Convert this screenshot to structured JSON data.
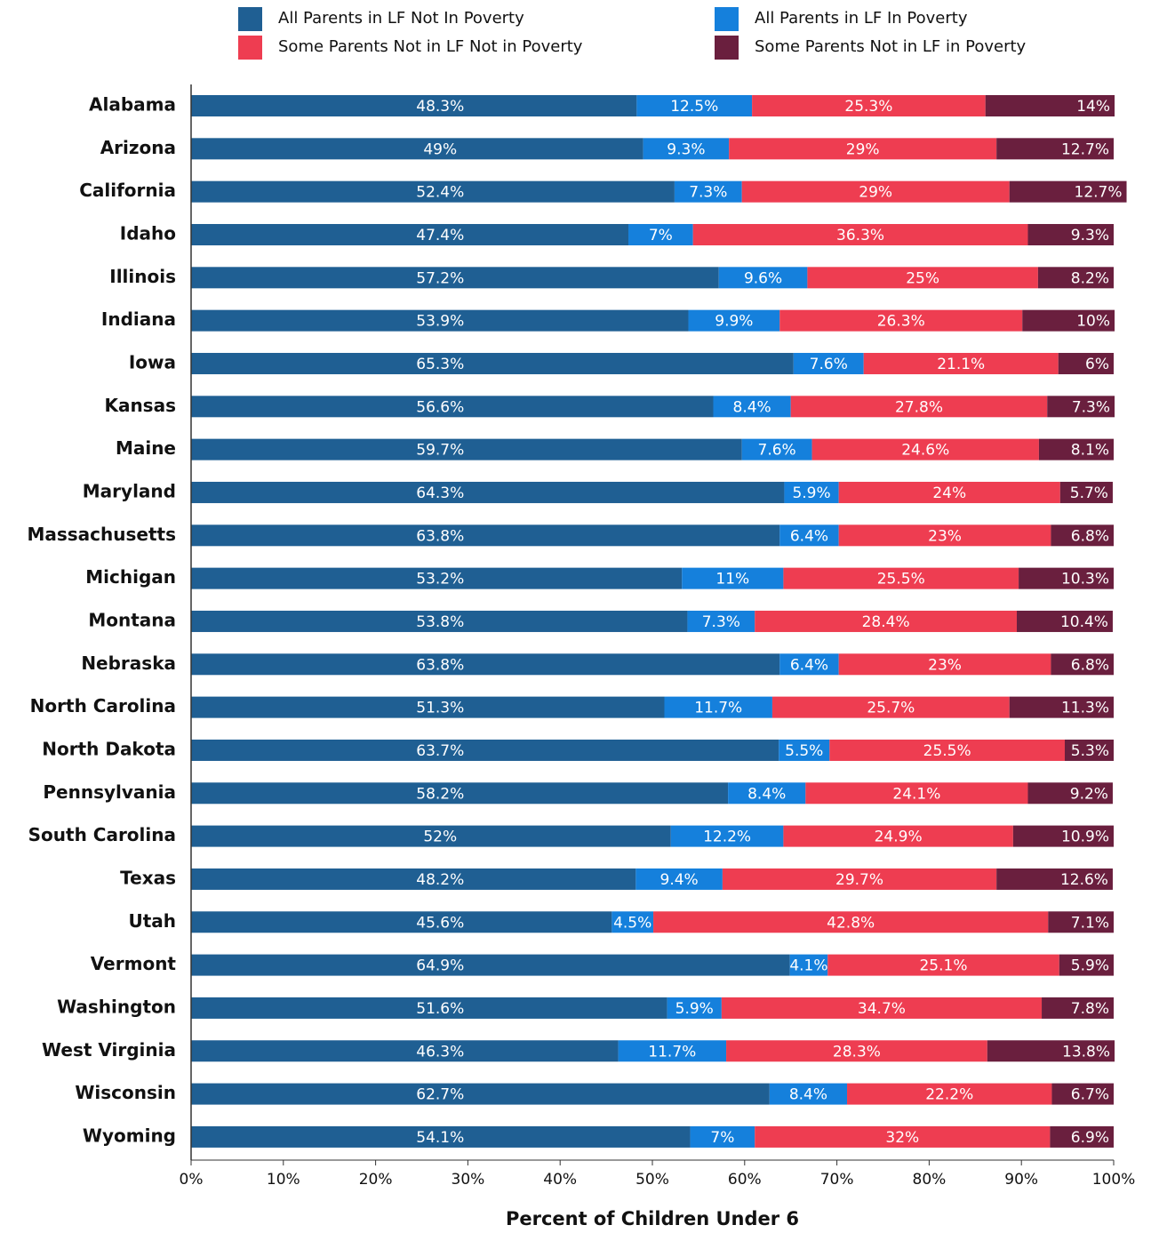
{
  "chart_data": {
    "type": "stacked_barh",
    "xlabel": "Percent of Children Under 6",
    "categories": [
      "Alabama",
      "Arizona",
      "California",
      "Idaho",
      "Illinois",
      "Indiana",
      "Iowa",
      "Kansas",
      "Maine",
      "Maryland",
      "Massachusetts",
      "Michigan",
      "Montana",
      "Nebraska",
      "North Carolina",
      "North Dakota",
      "Pennsylvania",
      "South Carolina",
      "Texas",
      "Utah",
      "Vermont",
      "Washington",
      "West Virginia",
      "Wisconsin",
      "Wyoming"
    ],
    "series": [
      {
        "name": "All Parents in LF Not In Poverty",
        "color": "#1f5f93",
        "values": [
          48.3,
          49,
          52.4,
          47.4,
          57.2,
          53.9,
          65.3,
          56.6,
          59.7,
          64.3,
          63.8,
          53.2,
          53.8,
          63.8,
          51.3,
          63.7,
          58.2,
          52,
          48.2,
          45.6,
          64.9,
          51.6,
          46.3,
          62.7,
          54.1
        ],
        "value_labels": [
          "48.3%",
          "49%",
          "52.4%",
          "47.4%",
          "57.2%",
          "53.9%",
          "65.3%",
          "56.6%",
          "59.7%",
          "64.3%",
          "63.8%",
          "53.2%",
          "53.8%",
          "63.8%",
          "51.3%",
          "63.7%",
          "58.2%",
          "52%",
          "48.2%",
          "45.6%",
          "64.9%",
          "51.6%",
          "46.3%",
          "62.7%",
          "54.1%"
        ]
      },
      {
        "name": "All Parents in LF In Poverty",
        "color": "#1580dc",
        "values": [
          12.5,
          9.3,
          7.3,
          7,
          9.6,
          9.9,
          7.6,
          8.4,
          7.6,
          5.9,
          6.4,
          11,
          7.3,
          6.4,
          11.7,
          5.5,
          8.4,
          12.2,
          9.4,
          4.5,
          4.1,
          5.9,
          11.7,
          8.4,
          7
        ],
        "value_labels": [
          "12.5%",
          "9.3%",
          "7.3%",
          "7%",
          "9.6%",
          "9.9%",
          "7.6%",
          "8.4%",
          "7.6%",
          "5.9%",
          "6.4%",
          "11%",
          "7.3%",
          "6.4%",
          "11.7%",
          "5.5%",
          "8.4%",
          "12.2%",
          "9.4%",
          "4.5%",
          "4.1%",
          "5.9%",
          "11.7%",
          "8.4%",
          "7%"
        ]
      },
      {
        "name": "Some Parents Not in LF Not in Poverty",
        "color": "#ee3d51",
        "values": [
          25.3,
          29,
          29,
          36.3,
          25,
          26.3,
          21.1,
          27.8,
          24.6,
          24,
          23,
          25.5,
          28.4,
          23,
          25.7,
          25.5,
          24.1,
          24.9,
          29.7,
          42.8,
          25.1,
          34.7,
          28.3,
          22.2,
          32
        ],
        "value_labels": [
          "25.3%",
          "29%",
          "29%",
          "36.3%",
          "25%",
          "26.3%",
          "21.1%",
          "27.8%",
          "24.6%",
          "24%",
          "23%",
          "25.5%",
          "28.4%",
          "23%",
          "25.7%",
          "25.5%",
          "24.1%",
          "24.9%",
          "29.7%",
          "42.8%",
          "25.1%",
          "34.7%",
          "28.3%",
          "22.2%",
          "32%"
        ]
      },
      {
        "name": "Some Parents Not in LF in Poverty",
        "color": "#6a1f3e",
        "values": [
          14,
          12.7,
          12.7,
          9.3,
          8.2,
          10,
          6,
          7.3,
          8.1,
          5.7,
          6.8,
          10.3,
          10.4,
          6.8,
          11.3,
          5.3,
          9.2,
          10.9,
          12.6,
          7.1,
          5.9,
          7.8,
          13.8,
          6.7,
          6.9
        ],
        "value_labels": [
          "14%",
          "12.7%",
          "12.7%",
          "9.3%",
          "8.2%",
          "10%",
          "6%",
          "7.3%",
          "8.1%",
          "5.7%",
          "6.8%",
          "10.3%",
          "10.4%",
          "6.8%",
          "11.3%",
          "5.3%",
          "9.2%",
          "10.9%",
          "12.6%",
          "7.1%",
          "5.9%",
          "7.8%",
          "13.8%",
          "6.7%",
          "6.9%"
        ]
      }
    ],
    "xlim": [
      0,
      100
    ],
    "xticks": [
      {
        "value": 0,
        "label": "0%"
      },
      {
        "value": 10,
        "label": "10%"
      },
      {
        "value": 20,
        "label": "20%"
      },
      {
        "value": 30,
        "label": "30%"
      },
      {
        "value": 40,
        "label": "40%"
      },
      {
        "value": 50,
        "label": "50%"
      },
      {
        "value": 60,
        "label": "60%"
      },
      {
        "value": 70,
        "label": "70%"
      },
      {
        "value": 80,
        "label": "80%"
      },
      {
        "value": 90,
        "label": "90%"
      },
      {
        "value": 100,
        "label": "100%"
      }
    ]
  }
}
